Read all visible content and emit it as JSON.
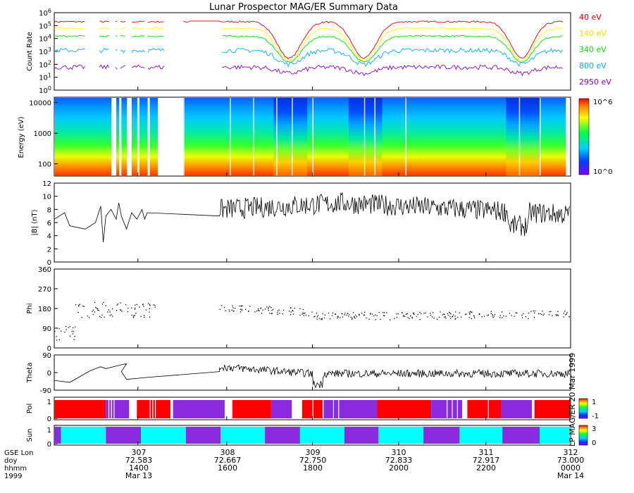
{
  "title": "Lunar Prospector MAG/ER Summary Data",
  "colors": {
    "series": [
      "#dd0000",
      "#ffff00",
      "#00dd00",
      "#00aaff",
      "#8800cc"
    ],
    "pol_pos": "#ff0000",
    "pol_neg": "#8a2be2",
    "sun_light": "#00ffff",
    "sun_dark": "#8a2be2"
  },
  "chart_data": [
    {
      "type": "line",
      "id": "count_rate",
      "ylabel": "Count Rate",
      "y_scale": "log",
      "ylim": [
        1,
        1000000
      ],
      "y_tick_labels": [
        "10^0",
        "10^1",
        "10^2",
        "10^3",
        "10^4",
        "10^5",
        "10^6"
      ],
      "series": [
        {
          "name": "40 eV",
          "base": 200000,
          "low": 300
        },
        {
          "name": "140 eV",
          "base": 60000,
          "low": 200
        },
        {
          "name": "340 eV",
          "base": 15000,
          "low": 150
        },
        {
          "name": "800 eV",
          "base": 1200,
          "low": 100
        },
        {
          "name": "2950 eV",
          "base": 60,
          "low": 20
        }
      ]
    },
    {
      "type": "heatmap",
      "id": "energy_spectrogram",
      "ylabel": "Energy (eV)",
      "y_scale": "log",
      "ylim": [
        40,
        15000
      ],
      "y_tick_labels": [
        "100",
        "1000",
        "10000"
      ],
      "colorbar": {
        "min_label": "10^0",
        "max_label": "10^6"
      }
    },
    {
      "type": "line",
      "id": "b_magnitude",
      "ylabel": "|B| (nT)",
      "ylim": [
        0,
        12
      ],
      "y_tick_labels": [
        "0",
        "2",
        "4",
        "6",
        "8",
        "10",
        "12"
      ]
    },
    {
      "type": "scatter",
      "id": "phi",
      "ylabel": "Phi",
      "ylim": [
        0,
        360
      ],
      "y_tick_labels": [
        "0",
        "90",
        "180",
        "270",
        "360"
      ]
    },
    {
      "type": "line",
      "id": "theta",
      "ylabel": "Theta",
      "ylim": [
        -90,
        90
      ],
      "y_tick_labels": [
        "-90",
        "0",
        "90"
      ]
    },
    {
      "type": "bar",
      "id": "pol",
      "ylabel": "Pol",
      "y_tick_labels": [
        "0",
        "1"
      ],
      "colorbar": {
        "min_label": "-1",
        "max_label": "1"
      }
    },
    {
      "type": "bar",
      "id": "sun",
      "ylabel": "Sun",
      "y_tick_labels": [
        "0",
        "1"
      ],
      "colorbar": {
        "min_label": "0",
        "max_label": "3"
      }
    }
  ],
  "x_axis": {
    "row_labels": [
      "GSE Lon",
      "doy",
      "hhmm",
      "1999"
    ],
    "ticks": [
      {
        "gse_lon": "307",
        "doy": "72.583",
        "hhmm": "1400",
        "date": "Mar 13"
      },
      {
        "gse_lon": "308",
        "doy": "72.667",
        "hhmm": "1600",
        "date": ""
      },
      {
        "gse_lon": "309",
        "doy": "72.750",
        "hhmm": "1800",
        "date": ""
      },
      {
        "gse_lon": "310",
        "doy": "72.833",
        "hhmm": "2000",
        "date": ""
      },
      {
        "gse_lon": "311",
        "doy": "72.917",
        "hhmm": "2200",
        "date": ""
      },
      {
        "gse_lon": "312",
        "doy": "73.000",
        "hhmm": "0000",
        "date": "Mar 14"
      }
    ]
  },
  "side_note": "LP MAG/ER 20 Mar 1999"
}
